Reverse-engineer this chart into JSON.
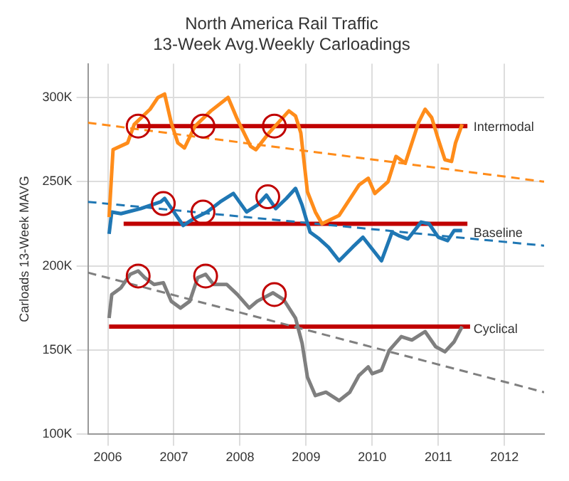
{
  "chart_data": {
    "type": "line",
    "title": "North America Rail Traffic",
    "subtitle": "13-Week Avg.Weekly Carloadings",
    "ylabel": "Carloads 13-Week MAVG",
    "xlim": [
      2005.7,
      2012.6
    ],
    "xticks": [
      2006,
      2007,
      2008,
      2009,
      2010,
      2011,
      2012
    ],
    "ylim": [
      100,
      320
    ],
    "yticks": [
      {
        "value": 100,
        "label": "100K"
      },
      {
        "value": 150,
        "label": "150K"
      },
      {
        "value": 200,
        "label": "200K"
      },
      {
        "value": 250,
        "label": "250K"
      },
      {
        "value": 300,
        "label": "300K"
      }
    ],
    "grid": true,
    "legend": false,
    "marker": "none",
    "series": [
      {
        "name": "Intermodal",
        "color": "#ff8c1a",
        "x": [
          2006.02,
          2006.08,
          2006.3,
          2006.4,
          2006.64,
          2006.76,
          2006.86,
          2006.96,
          2007.06,
          2007.16,
          2007.32,
          2007.56,
          2007.82,
          2007.96,
          2008.16,
          2008.24,
          2008.44,
          2008.74,
          2008.84,
          2008.92,
          2009.02,
          2009.14,
          2009.24,
          2009.5,
          2009.8,
          2009.94,
          2010.04,
          2010.24,
          2010.36,
          2010.5,
          2010.7,
          2010.8,
          2010.9,
          2011.0,
          2011.1,
          2011.2,
          2011.26,
          2011.36
        ],
        "values": [
          229,
          269,
          273,
          284,
          293,
          300,
          302,
          285,
          273,
          270,
          283,
          292,
          300,
          287,
          271,
          269,
          279,
          292,
          289,
          279,
          244,
          232,
          225,
          230,
          248,
          252,
          243,
          250,
          265,
          261,
          285,
          293,
          288,
          275,
          263,
          262,
          273,
          284
        ]
      },
      {
        "name": "Baseline",
        "color": "#1f77b4",
        "x": [
          2006.02,
          2006.06,
          2006.2,
          2006.5,
          2006.8,
          2006.86,
          2007.0,
          2007.14,
          2007.3,
          2007.5,
          2007.7,
          2007.9,
          2008.1,
          2008.26,
          2008.4,
          2008.54,
          2008.7,
          2008.84,
          2008.94,
          2009.06,
          2009.2,
          2009.34,
          2009.5,
          2009.7,
          2009.86,
          2010.0,
          2010.14,
          2010.3,
          2010.4,
          2010.54,
          2010.74,
          2010.86,
          2011.0,
          2011.14,
          2011.24,
          2011.36
        ],
        "values": [
          219,
          232,
          231,
          234,
          238,
          240,
          232,
          224,
          228,
          232,
          238,
          243,
          232,
          236,
          242,
          234,
          240,
          246,
          236,
          220,
          216,
          211,
          203,
          211,
          217,
          210,
          203,
          220,
          218,
          216,
          226,
          225,
          217,
          215,
          221,
          221
        ]
      },
      {
        "name": "Cyclical",
        "color": "#7f7f7f",
        "x": [
          2006.02,
          2006.06,
          2006.2,
          2006.34,
          2006.46,
          2006.56,
          2006.7,
          2006.84,
          2006.96,
          2007.1,
          2007.24,
          2007.36,
          2007.48,
          2007.6,
          2007.8,
          2007.96,
          2008.14,
          2008.26,
          2008.5,
          2008.66,
          2008.84,
          2008.94,
          2009.02,
          2009.14,
          2009.3,
          2009.5,
          2009.66,
          2009.8,
          2009.94,
          2010.0,
          2010.14,
          2010.26,
          2010.44,
          2010.6,
          2010.8,
          2010.96,
          2011.1,
          2011.24,
          2011.36
        ],
        "values": [
          169,
          183,
          187,
          195,
          197,
          193,
          189,
          190,
          179,
          175,
          179,
          193,
          195,
          189,
          189,
          183,
          175,
          179,
          184,
          180,
          169,
          154,
          134,
          123,
          125,
          120,
          125,
          135,
          140,
          136,
          138,
          150,
          158,
          156,
          161,
          152,
          149,
          155,
          164
        ]
      },
      {
        "color": "#ff8c1a",
        "line_style": "dashed",
        "x": [
          2005.7,
          2012.6
        ],
        "values": [
          285,
          250
        ]
      },
      {
        "color": "#1f77b4",
        "line_style": "dashed",
        "x": [
          2005.7,
          2012.6
        ],
        "values": [
          238,
          212
        ]
      },
      {
        "color": "#7f7f7f",
        "line_style": "dashed",
        "x": [
          2005.7,
          2012.6
        ],
        "values": [
          196,
          125
        ]
      },
      {
        "color": "#c00000",
        "x": [
          2006.44,
          2011.44
        ],
        "values": [
          283,
          283
        ]
      },
      {
        "color": "#c00000",
        "x": [
          2006.24,
          2011.44
        ],
        "values": [
          225,
          225
        ]
      },
      {
        "color": "#c00000",
        "x": [
          2006.02,
          2011.48
        ],
        "values": [
          164,
          164
        ]
      },
      {
        "type": "scatter",
        "marker": "circle",
        "color": "#c00000",
        "x": [
          2006.46,
          2007.44,
          2008.52,
          2006.84,
          2007.44,
          2008.42,
          2006.46,
          2007.48,
          2008.52
        ],
        "values": [
          283,
          283,
          283,
          237,
          232,
          241,
          194,
          194,
          183
        ]
      }
    ]
  }
}
